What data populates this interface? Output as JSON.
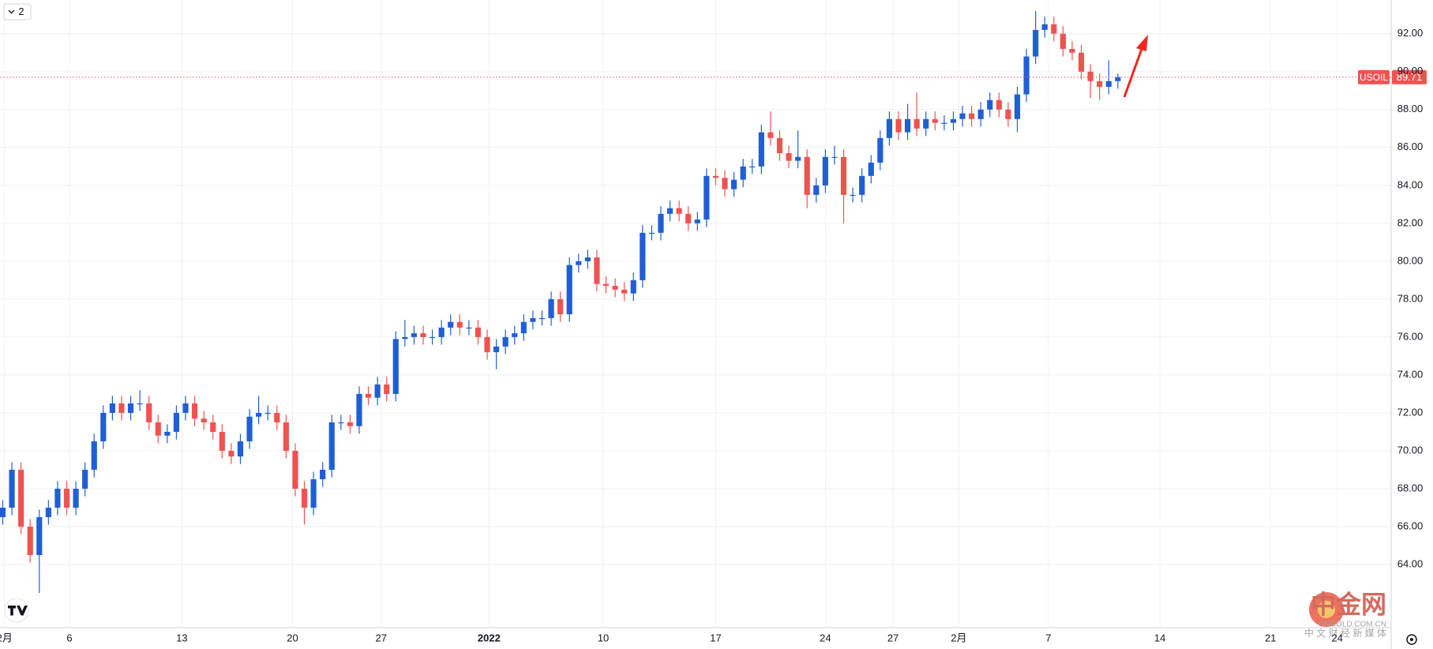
{
  "chart_data": {
    "type": "candlestick",
    "symbol": "USOIL",
    "last_price": 89.71,
    "collapsed_indicators": "2",
    "up_color": "#1f5fd6",
    "down_color": "#ef5350",
    "grid": true,
    "ylim": [
      60.67,
      93.78
    ],
    "yticks": [
      {
        "value": 64,
        "label": "64.00"
      },
      {
        "value": 66,
        "label": "66.00"
      },
      {
        "value": 68,
        "label": "68.00"
      },
      {
        "value": 70,
        "label": "70.00"
      },
      {
        "value": 72,
        "label": "72.00"
      },
      {
        "value": 74,
        "label": "74.00"
      },
      {
        "value": 76,
        "label": "76.00"
      },
      {
        "value": 78,
        "label": "78.00"
      },
      {
        "value": 80,
        "label": "80.00"
      },
      {
        "value": 82,
        "label": "82.00"
      },
      {
        "value": 84,
        "label": "84.00"
      },
      {
        "value": 86,
        "label": "86.00"
      },
      {
        "value": 88,
        "label": "88.00"
      },
      {
        "value": 90,
        "label": "90.00"
      },
      {
        "value": 92,
        "label": "92.00"
      }
    ],
    "xlim": [
      -0.3,
      151.9
    ],
    "xticks": [
      {
        "value": 0.2,
        "label": "2月"
      },
      {
        "value": 7.3,
        "label": "6"
      },
      {
        "value": 19.6,
        "label": "13"
      },
      {
        "value": 31.7,
        "label": "20"
      },
      {
        "value": 41.4,
        "label": "27"
      },
      {
        "value": 53.2,
        "label": "2022"
      },
      {
        "value": 65.7,
        "label": "10"
      },
      {
        "value": 78,
        "label": "17"
      },
      {
        "value": 90,
        "label": "24"
      },
      {
        "value": 97.4,
        "label": "27"
      },
      {
        "value": 104.6,
        "label": "2月"
      },
      {
        "value": 114.4,
        "label": "7"
      },
      {
        "value": 126.6,
        "label": "14"
      },
      {
        "value": 138.7,
        "label": "21"
      },
      {
        "value": 146,
        "label": "24"
      }
    ],
    "open": [
      66.5,
      67,
      69,
      66,
      64.5,
      66.5,
      67,
      68,
      67,
      68,
      69,
      70.5,
      72,
      72.5,
      72,
      72.5,
      72.5,
      71.5,
      70.8,
      71,
      72,
      72.5,
      71.7,
      71.5,
      71,
      70,
      69.7,
      70.5,
      71.8,
      72,
      72,
      71.5,
      70,
      68,
      67,
      68.5,
      69,
      71.5,
      71.5,
      71.3,
      73,
      72.8,
      73.5,
      73,
      75.9,
      76,
      76.2,
      76,
      76,
      76.5,
      76.8,
      76.5,
      76.5,
      76,
      75.2,
      75.5,
      76,
      76.2,
      76.8,
      77,
      77,
      78,
      77.2,
      79.8,
      80,
      80.2,
      78.8,
      78.7,
      78.5,
      78.3,
      79,
      81.5,
      81.5,
      82.5,
      82.8,
      82.5,
      82,
      82.2,
      84.5,
      84.4,
      83.8,
      84.3,
      85,
      85,
      86.8,
      86.5,
      85.7,
      85.3,
      85.5,
      83.5,
      84,
      85.5,
      85.5,
      83.5,
      83.5,
      84.5,
      85.2,
      86.5,
      87.5,
      86.8,
      87.5,
      87,
      87.5,
      87.3,
      87.3,
      87.5,
      87.8,
      87.5,
      88,
      88.5,
      88,
      87.5,
      88.8,
      90.8,
      92.2,
      92.5,
      92,
      91.2,
      91,
      90,
      89.5,
      89.2,
      89.5
    ],
    "high": [
      67.4,
      69.4,
      69.4,
      66.4,
      66.9,
      67.4,
      68.4,
      68.4,
      68.4,
      69.4,
      70.9,
      72.4,
      72.9,
      72.9,
      72.9,
      73.2,
      72.9,
      71.9,
      71.4,
      72.4,
      72.9,
      72.9,
      72.1,
      71.9,
      71.4,
      70.4,
      70.9,
      72.2,
      72.9,
      72.4,
      72.4,
      71.9,
      70.4,
      68.4,
      68.9,
      69.4,
      71.9,
      71.9,
      71.9,
      73.4,
      73.4,
      73.9,
      73.9,
      76.3,
      76.9,
      76.6,
      76.6,
      76.4,
      76.9,
      77.2,
      77.2,
      76.9,
      76.9,
      76.4,
      75.9,
      76.4,
      76.6,
      77.2,
      77.4,
      77.4,
      78.4,
      78.4,
      80.2,
      80.4,
      80.6,
      80.6,
      79.2,
      79.1,
      78.9,
      79.4,
      81.9,
      81.9,
      82.9,
      83.2,
      83.2,
      82.9,
      82.6,
      84.9,
      84.9,
      84.8,
      84.7,
      85.4,
      85.4,
      87.2,
      87.9,
      86.9,
      86.1,
      86.9,
      85.9,
      84.4,
      85.9,
      86.1,
      85.9,
      83.9,
      84.9,
      85.6,
      86.9,
      87.9,
      87.9,
      88.3,
      88.9,
      87.9,
      87.9,
      87.7,
      87.9,
      88.2,
      88.2,
      88.4,
      88.9,
      88.9,
      88.4,
      89.2,
      91.2,
      93.2,
      92.9,
      92.9,
      92.4,
      91.6,
      91.4,
      90.4,
      89.9,
      90.6,
      89.9
    ],
    "low": [
      66.1,
      66.6,
      65.6,
      64.1,
      62.5,
      66.1,
      66.6,
      66.6,
      66.6,
      67.6,
      68.6,
      70.1,
      71.6,
      71.6,
      71.6,
      72.1,
      71.1,
      70.4,
      70.4,
      70.6,
      71.6,
      71.3,
      71.1,
      70.6,
      69.6,
      69.3,
      69.3,
      70.1,
      71.4,
      71.6,
      71.1,
      69.6,
      67.6,
      66.1,
      66.6,
      68.1,
      68.6,
      71.1,
      70.9,
      70.9,
      72.4,
      72.4,
      72.6,
      72.6,
      75.5,
      75.6,
      75.6,
      75.6,
      75.6,
      76.1,
      76.1,
      76.1,
      75.6,
      74.8,
      74.3,
      75.1,
      75.6,
      75.8,
      76.4,
      76.6,
      76.6,
      76.8,
      76.8,
      79.4,
      79.6,
      78.4,
      78.3,
      78.1,
      77.9,
      77.9,
      78.6,
      81.1,
      81.1,
      82.1,
      82.1,
      81.6,
      81.6,
      81.8,
      84,
      83.4,
      83.4,
      83.9,
      84.6,
      84.6,
      86.1,
      85.3,
      84.9,
      84.9,
      82.8,
      83.1,
      83.6,
      85.1,
      82,
      83.1,
      83.1,
      84.1,
      84.8,
      86.1,
      86.4,
      86.4,
      86.6,
      86.6,
      86.9,
      86.9,
      86.9,
      87.1,
      87.1,
      87.1,
      87.6,
      87.6,
      87.1,
      86.8,
      88.4,
      90.4,
      91.8,
      91.6,
      90.8,
      90.6,
      89.6,
      88.6,
      88.5,
      88.8,
      89.1
    ],
    "close": [
      67,
      69,
      66,
      64.5,
      66.5,
      67,
      68,
      67,
      68,
      69,
      70.5,
      72,
      72.5,
      72,
      72.5,
      72.5,
      71.5,
      70.8,
      71,
      72,
      72.5,
      71.7,
      71.5,
      71,
      70,
      69.7,
      70.5,
      71.8,
      72,
      72,
      71.5,
      70,
      68,
      67,
      68.5,
      69,
      71.5,
      71.5,
      71.3,
      73,
      72.8,
      73.5,
      73,
      75.9,
      76,
      76.2,
      76,
      76,
      76.5,
      76.8,
      76.5,
      76.5,
      76,
      75.2,
      75.5,
      76,
      76.2,
      76.8,
      77,
      77,
      78,
      77.2,
      79.8,
      80,
      80.2,
      78.8,
      78.7,
      78.5,
      78.3,
      79,
      81.5,
      81.5,
      82.5,
      82.8,
      82.5,
      82,
      82.2,
      84.5,
      84.4,
      83.8,
      84.3,
      85,
      85,
      86.8,
      86.5,
      85.7,
      85.3,
      85.5,
      83.5,
      84,
      85.5,
      85.5,
      83.5,
      83.5,
      84.5,
      85.2,
      86.5,
      87.5,
      86.8,
      87.5,
      87,
      87.5,
      87.3,
      87.3,
      87.5,
      87.8,
      87.5,
      88,
      88.5,
      88,
      87.5,
      88.8,
      90.8,
      92.2,
      92.5,
      92,
      91.2,
      91,
      90,
      89.5,
      89.2,
      89.5,
      89.71
    ]
  },
  "watermark": {
    "name": "中金网",
    "domain": "CNGOLD.COM.CN",
    "slogan": "中 文 财 经 新 媒 体"
  }
}
